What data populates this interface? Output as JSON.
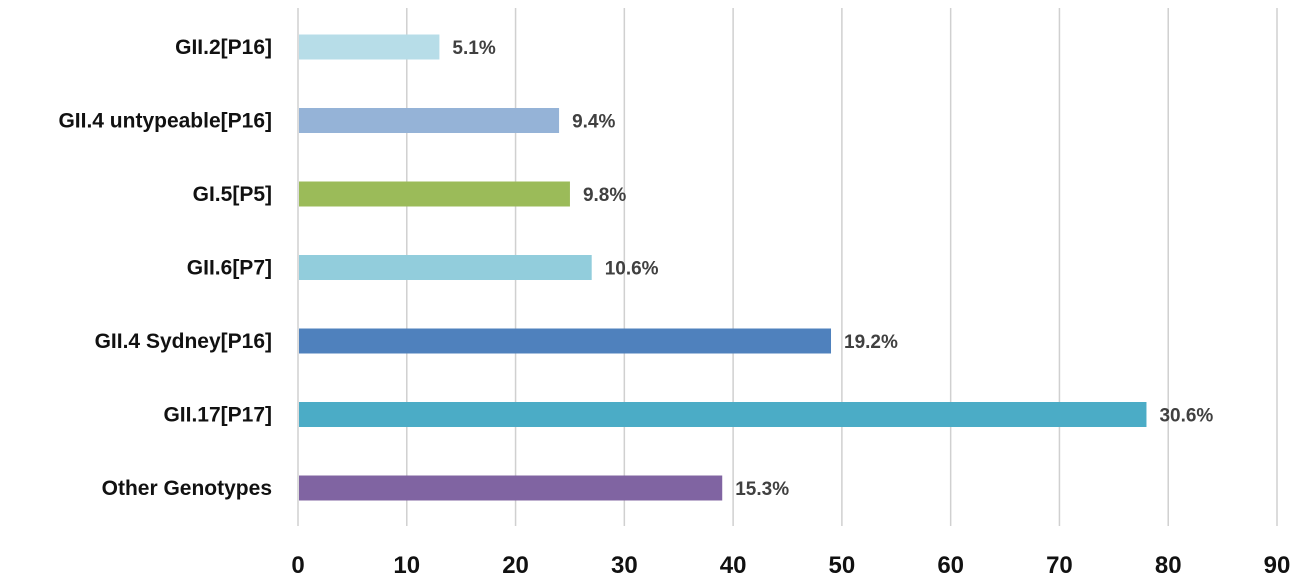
{
  "chart_data": {
    "type": "bar",
    "orientation": "horizontal",
    "categories": [
      "GII.2[P16]",
      "GII.4 untypeable[P16]",
      "GI.5[P5]",
      "GII.6[P7]",
      "GII.4 Sydney[P16]",
      "GII.17[P17]",
      "Other Genotypes"
    ],
    "values": [
      13,
      24,
      25,
      27,
      49,
      78,
      39
    ],
    "data_labels": [
      "5.1%",
      "9.4%",
      "9.8%",
      "10.6%",
      "19.2%",
      "30.6%",
      "15.3%"
    ],
    "colors": [
      "#b7dde8",
      "#95b3d7",
      "#9bbb59",
      "#92cddc",
      "#4f81bd",
      "#4bacc6",
      "#8064a2"
    ],
    "xlim": [
      0,
      90
    ],
    "xticks": [
      0,
      10,
      20,
      30,
      40,
      50,
      60,
      70,
      80,
      90
    ],
    "grid": true,
    "legend": "none",
    "title": "",
    "xlabel": "",
    "ylabel": ""
  }
}
